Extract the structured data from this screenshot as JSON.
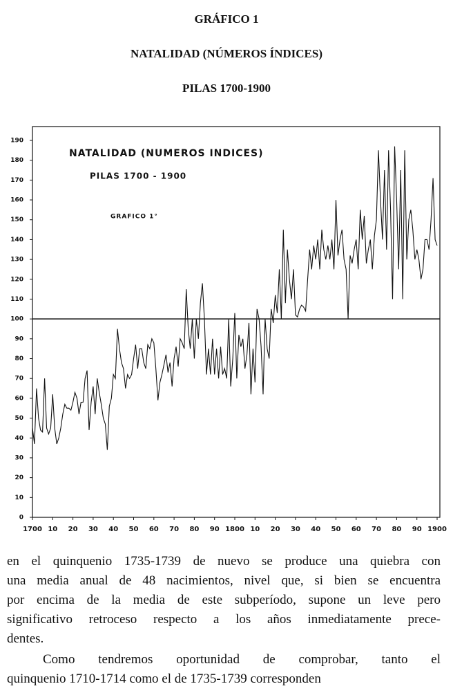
{
  "header": {
    "lines": [
      "GRÁFICO 1",
      "NATALIDAD (NÚMEROS ÍNDICES)",
      "PILAS 1700-1900"
    ]
  },
  "chart_data": {
    "type": "line",
    "annotations": [
      "NATALIDAD (NUMEROS INDICES)",
      "PILAS 1700 - 1900",
      "GRAFICO 1°"
    ],
    "x": [
      1700,
      1701,
      1702,
      1703,
      1704,
      1705,
      1706,
      1707,
      1708,
      1709,
      1710,
      1711,
      1712,
      1713,
      1714,
      1715,
      1716,
      1717,
      1718,
      1719,
      1720,
      1721,
      1722,
      1723,
      1724,
      1725,
      1726,
      1727,
      1728,
      1729,
      1730,
      1731,
      1732,
      1733,
      1734,
      1735,
      1736,
      1737,
      1738,
      1739,
      1740,
      1741,
      1742,
      1743,
      1744,
      1745,
      1746,
      1747,
      1748,
      1749,
      1750,
      1751,
      1752,
      1753,
      1754,
      1755,
      1756,
      1757,
      1758,
      1759,
      1760,
      1761,
      1762,
      1763,
      1764,
      1765,
      1766,
      1767,
      1768,
      1769,
      1770,
      1771,
      1772,
      1773,
      1774,
      1775,
      1776,
      1777,
      1778,
      1779,
      1780,
      1781,
      1782,
      1783,
      1784,
      1785,
      1786,
      1787,
      1788,
      1789,
      1790,
      1791,
      1792,
      1793,
      1794,
      1795,
      1796,
      1797,
      1798,
      1799,
      1800,
      1801,
      1802,
      1803,
      1804,
      1805,
      1806,
      1807,
      1808,
      1809,
      1810,
      1811,
      1812,
      1813,
      1814,
      1815,
      1816,
      1817,
      1818,
      1819,
      1820,
      1821,
      1822,
      1823,
      1824,
      1825,
      1826,
      1827,
      1828,
      1829,
      1830,
      1831,
      1832,
      1833,
      1834,
      1835,
      1836,
      1837,
      1838,
      1839,
      1840,
      1841,
      1842,
      1843,
      1844,
      1845,
      1846,
      1847,
      1848,
      1849,
      1850,
      1851,
      1852,
      1853,
      1854,
      1855,
      1856,
      1857,
      1858,
      1859,
      1860,
      1861,
      1862,
      1863,
      1864,
      1865,
      1866,
      1867,
      1868,
      1869,
      1870,
      1871,
      1872,
      1873,
      1874,
      1875,
      1876,
      1877,
      1878,
      1879,
      1880,
      1881,
      1882,
      1883,
      1884,
      1885,
      1886,
      1887,
      1888,
      1889,
      1890,
      1891,
      1892,
      1893,
      1894,
      1895,
      1896,
      1897,
      1898,
      1899,
      1900
    ],
    "series": [
      {
        "color": "#111111",
        "values": [
          45,
          37,
          65,
          50,
          44,
          43,
          70,
          45,
          42,
          45,
          62,
          45,
          37,
          40,
          45,
          52,
          57,
          55,
          55,
          54,
          58,
          63,
          60,
          52,
          58,
          58,
          70,
          74,
          44,
          58,
          66,
          52,
          70,
          63,
          57,
          50,
          47,
          34,
          56,
          60,
          72,
          70,
          95,
          85,
          78,
          75,
          65,
          72,
          70,
          72,
          80,
          87,
          75,
          85,
          85,
          78,
          75,
          87,
          85,
          90,
          88,
          75,
          59,
          68,
          72,
          77,
          82,
          73,
          78,
          66,
          80,
          86,
          76,
          90,
          88,
          85,
          115,
          95,
          85,
          100,
          80,
          100,
          90,
          108,
          118,
          100,
          72,
          85,
          72,
          90,
          72,
          85,
          70,
          86,
          72,
          75,
          70,
          100,
          66,
          80,
          103,
          70,
          92,
          86,
          90,
          75,
          82,
          98,
          62,
          85,
          68,
          105,
          100,
          86,
          62,
          100,
          85,
          80,
          105,
          98,
          112,
          103,
          125,
          100,
          145,
          108,
          135,
          120,
          110,
          125,
          102,
          101,
          105,
          107,
          106,
          104,
          120,
          135,
          125,
          137,
          130,
          140,
          125,
          145,
          135,
          130,
          137,
          130,
          140,
          125,
          160,
          132,
          140,
          145,
          130,
          125,
          100,
          132,
          128,
          135,
          140,
          125,
          155,
          140,
          152,
          128,
          135,
          140,
          125,
          142,
          150,
          185,
          160,
          140,
          175,
          135,
          185,
          155,
          110,
          187,
          160,
          125,
          175,
          110,
          185,
          130,
          150,
          155,
          145,
          130,
          135,
          130,
          120,
          125,
          140,
          140,
          135,
          150,
          171,
          140,
          137
        ]
      }
    ],
    "reference_line": 100,
    "xlim": [
      1700,
      1900
    ],
    "xticks": [
      1700,
      {
        "value": 1710,
        "label": "10"
      },
      {
        "value": 1720,
        "label": "20"
      },
      {
        "value": 1730,
        "label": "30"
      },
      {
        "value": 1740,
        "label": "40"
      },
      {
        "value": 1750,
        "label": "50"
      },
      {
        "value": 1760,
        "label": "60"
      },
      {
        "value": 1770,
        "label": "70"
      },
      {
        "value": 1780,
        "label": "80"
      },
      {
        "value": 1790,
        "label": "90"
      },
      1800,
      {
        "value": 1810,
        "label": "10"
      },
      {
        "value": 1820,
        "label": "20"
      },
      {
        "value": 1830,
        "label": "30"
      },
      {
        "value": 1840,
        "label": "40"
      },
      {
        "value": 1850,
        "label": "50"
      },
      {
        "value": 1860,
        "label": "60"
      },
      {
        "value": 1870,
        "label": "70"
      },
      {
        "value": 1880,
        "label": "80"
      },
      {
        "value": 1890,
        "label": "90"
      },
      1900
    ],
    "ylim": [
      0,
      190
    ],
    "yticks": [
      0,
      10,
      20,
      30,
      40,
      50,
      60,
      70,
      80,
      90,
      100,
      110,
      120,
      130,
      140,
      150,
      160,
      170,
      180,
      190
    ]
  },
  "body": {
    "paragraphs": [
      [
        "en el quinquenio 1735-1739 de nuevo se produce una quiebra con",
        "una media anual de 48 nacimientos, nivel que, si bien se encuentra",
        "por encima de la media de este subperíodo, supone un leve pero",
        "significativo retroceso respecto a los años inmediatamente prece-",
        "dentes."
      ],
      [
        "Como tendremos oportunidad de comprobar, tanto el",
        "quinquenio 1710-1714 como el de 1735-1739 corresponden"
      ]
    ]
  }
}
